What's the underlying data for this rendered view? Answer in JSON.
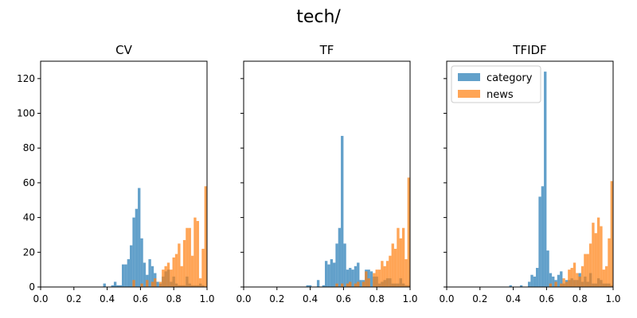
{
  "figure": {
    "suptitle": "tech/"
  },
  "colors": {
    "category": "#1f77b4",
    "news": "#ff7f0e"
  },
  "chart_data": [
    {
      "type": "histogram",
      "title": "CV",
      "xlim": [
        0,
        1
      ],
      "ylim": [
        0,
        130
      ],
      "xticks": [
        "0.0",
        "0.2",
        "0.4",
        "0.6",
        "0.8",
        "1.0"
      ],
      "yticks": [
        "0",
        "20",
        "40",
        "60",
        "80",
        "100",
        "120"
      ],
      "bin_width": 0.016,
      "series": [
        {
          "name": "category",
          "bins": [
            [
              0.376,
              2
            ],
            [
              0.424,
              1
            ],
            [
              0.44,
              3
            ],
            [
              0.456,
              1
            ],
            [
              0.472,
              1
            ],
            [
              0.488,
              13
            ],
            [
              0.504,
              13
            ],
            [
              0.52,
              16
            ],
            [
              0.536,
              24
            ],
            [
              0.552,
              40
            ],
            [
              0.568,
              45
            ],
            [
              0.584,
              57
            ],
            [
              0.6,
              28
            ],
            [
              0.616,
              14
            ],
            [
              0.632,
              7
            ],
            [
              0.648,
              16
            ],
            [
              0.664,
              12
            ],
            [
              0.68,
              8
            ],
            [
              0.696,
              3
            ],
            [
              0.712,
              2
            ],
            [
              0.728,
              6
            ],
            [
              0.744,
              9
            ],
            [
              0.76,
              10
            ],
            [
              0.776,
              3
            ],
            [
              0.792,
              6
            ],
            [
              0.808,
              2
            ],
            [
              0.824,
              1
            ],
            [
              0.84,
              1
            ],
            [
              0.856,
              1
            ],
            [
              0.872,
              6
            ],
            [
              0.888,
              2
            ],
            [
              0.904,
              1
            ],
            [
              0.92,
              1
            ],
            [
              0.936,
              1
            ],
            [
              0.952,
              2
            ],
            [
              0.968,
              1
            ]
          ]
        },
        {
          "name": "news",
          "bins": [
            [
              0.552,
              4
            ],
            [
              0.6,
              2
            ],
            [
              0.632,
              4
            ],
            [
              0.664,
              3
            ],
            [
              0.68,
              5
            ],
            [
              0.712,
              3
            ],
            [
              0.728,
              10
            ],
            [
              0.744,
              12
            ],
            [
              0.76,
              14
            ],
            [
              0.776,
              10
            ],
            [
              0.792,
              17
            ],
            [
              0.808,
              19
            ],
            [
              0.824,
              25
            ],
            [
              0.84,
              12
            ],
            [
              0.856,
              27
            ],
            [
              0.872,
              34
            ],
            [
              0.888,
              34
            ],
            [
              0.904,
              18
            ],
            [
              0.92,
              40
            ],
            [
              0.936,
              38
            ],
            [
              0.952,
              5
            ],
            [
              0.968,
              22
            ],
            [
              0.984,
              58
            ]
          ]
        }
      ]
    },
    {
      "type": "histogram",
      "title": "TF",
      "xlim": [
        0,
        1
      ],
      "ylim": [
        0,
        130
      ],
      "xticks": [
        "0.0",
        "0.2",
        "0.4",
        "0.6",
        "0.8",
        "1.0"
      ],
      "yticks": [
        "0",
        "20",
        "40",
        "60",
        "80",
        "100",
        "120"
      ],
      "bin_width": 0.016,
      "series": [
        {
          "name": "category",
          "bins": [
            [
              0.376,
              1
            ],
            [
              0.392,
              1
            ],
            [
              0.44,
              4
            ],
            [
              0.472,
              1
            ],
            [
              0.488,
              15
            ],
            [
              0.504,
              13
            ],
            [
              0.52,
              16
            ],
            [
              0.536,
              14
            ],
            [
              0.552,
              25
            ],
            [
              0.568,
              34
            ],
            [
              0.584,
              87
            ],
            [
              0.6,
              25
            ],
            [
              0.616,
              10
            ],
            [
              0.632,
              11
            ],
            [
              0.648,
              10
            ],
            [
              0.664,
              12
            ],
            [
              0.68,
              14
            ],
            [
              0.696,
              4
            ],
            [
              0.712,
              4
            ],
            [
              0.728,
              10
            ],
            [
              0.744,
              10
            ],
            [
              0.76,
              9
            ],
            [
              0.776,
              6
            ],
            [
              0.792,
              6
            ],
            [
              0.808,
              2
            ],
            [
              0.824,
              3
            ],
            [
              0.84,
              4
            ],
            [
              0.856,
              5
            ],
            [
              0.872,
              5
            ],
            [
              0.888,
              2
            ],
            [
              0.904,
              2
            ],
            [
              0.92,
              2
            ],
            [
              0.936,
              5
            ],
            [
              0.952,
              2
            ],
            [
              0.968,
              1
            ],
            [
              0.984,
              1
            ]
          ]
        },
        {
          "name": "news",
          "bins": [
            [
              0.552,
              2
            ],
            [
              0.584,
              2
            ],
            [
              0.616,
              2
            ],
            [
              0.632,
              3
            ],
            [
              0.664,
              2
            ],
            [
              0.68,
              3
            ],
            [
              0.712,
              3
            ],
            [
              0.728,
              9
            ],
            [
              0.744,
              5
            ],
            [
              0.776,
              8
            ],
            [
              0.792,
              10
            ],
            [
              0.808,
              10
            ],
            [
              0.824,
              15
            ],
            [
              0.84,
              12
            ],
            [
              0.856,
              15
            ],
            [
              0.872,
              18
            ],
            [
              0.888,
              25
            ],
            [
              0.904,
              22
            ],
            [
              0.92,
              34
            ],
            [
              0.936,
              28
            ],
            [
              0.952,
              34
            ],
            [
              0.968,
              16
            ],
            [
              0.984,
              63
            ]
          ]
        }
      ]
    },
    {
      "type": "histogram",
      "title": "TFIDF",
      "xlim": [
        0,
        1
      ],
      "ylim": [
        0,
        130
      ],
      "xticks": [
        "0.0",
        "0.2",
        "0.4",
        "0.6",
        "0.8",
        "1.0"
      ],
      "yticks": [
        "0",
        "20",
        "40",
        "60",
        "80",
        "100",
        "120"
      ],
      "legend": "upper-left",
      "bin_width": 0.016,
      "series": [
        {
          "name": "category",
          "bins": [
            [
              0.376,
              1
            ],
            [
              0.44,
              1
            ],
            [
              0.488,
              3
            ],
            [
              0.504,
              7
            ],
            [
              0.52,
              6
            ],
            [
              0.536,
              11
            ],
            [
              0.552,
              52
            ],
            [
              0.568,
              58
            ],
            [
              0.584,
              124
            ],
            [
              0.6,
              21
            ],
            [
              0.616,
              8
            ],
            [
              0.632,
              6
            ],
            [
              0.648,
              4
            ],
            [
              0.664,
              7
            ],
            [
              0.68,
              9
            ],
            [
              0.696,
              2
            ],
            [
              0.712,
              4
            ],
            [
              0.728,
              4
            ],
            [
              0.744,
              5
            ],
            [
              0.76,
              4
            ],
            [
              0.776,
              4
            ],
            [
              0.792,
              8
            ],
            [
              0.808,
              3
            ],
            [
              0.824,
              6
            ],
            [
              0.84,
              3
            ],
            [
              0.856,
              8
            ],
            [
              0.872,
              2
            ],
            [
              0.888,
              2
            ],
            [
              0.904,
              5
            ],
            [
              0.92,
              4
            ],
            [
              0.936,
              2
            ],
            [
              0.952,
              2
            ],
            [
              0.968,
              2
            ],
            [
              0.984,
              1
            ]
          ]
        },
        {
          "name": "news",
          "bins": [
            [
              0.616,
              2
            ],
            [
              0.648,
              3
            ],
            [
              0.68,
              2
            ],
            [
              0.696,
              5
            ],
            [
              0.712,
              3
            ],
            [
              0.728,
              10
            ],
            [
              0.744,
              11
            ],
            [
              0.76,
              14
            ],
            [
              0.776,
              8
            ],
            [
              0.792,
              6
            ],
            [
              0.808,
              12
            ],
            [
              0.824,
              19
            ],
            [
              0.84,
              19
            ],
            [
              0.856,
              25
            ],
            [
              0.872,
              37
            ],
            [
              0.888,
              31
            ],
            [
              0.904,
              40
            ],
            [
              0.92,
              35
            ],
            [
              0.936,
              10
            ],
            [
              0.952,
              12
            ],
            [
              0.968,
              28
            ],
            [
              0.984,
              61
            ]
          ]
        }
      ]
    }
  ]
}
